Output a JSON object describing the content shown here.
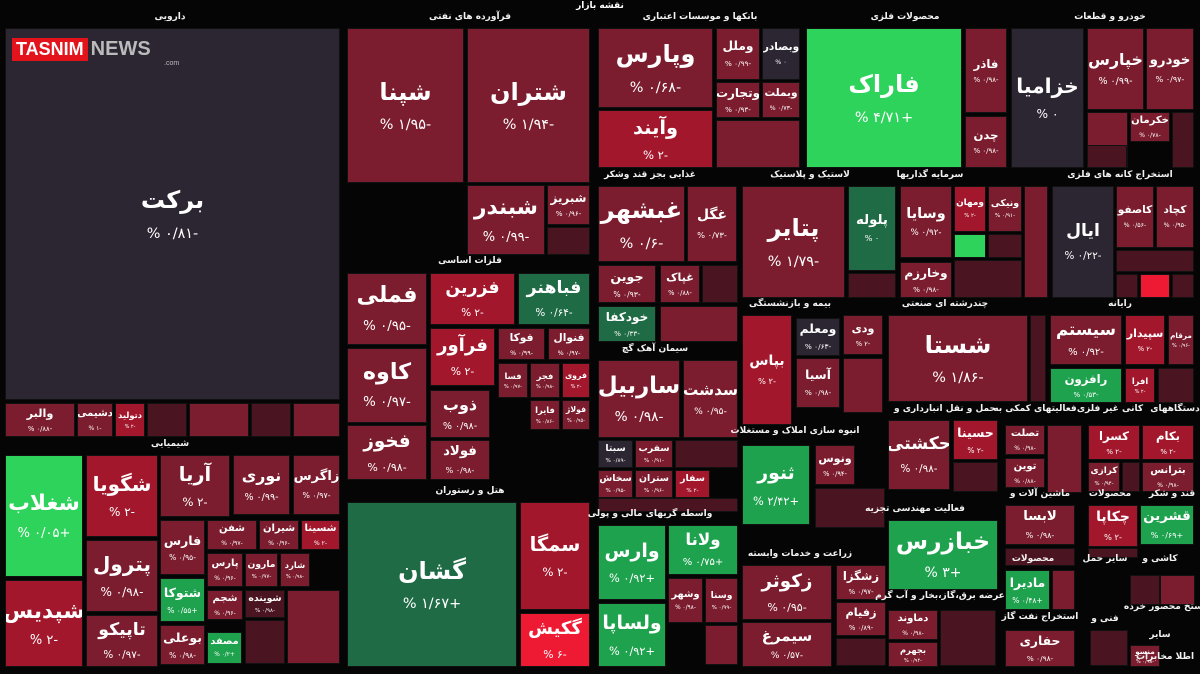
{
  "title": "نقشه بازار",
  "logo": {
    "brand": "TASNIM",
    "suffix": "NEWS",
    "domain": ".com"
  },
  "sectors": [
    {
      "name": "دارویی",
      "tiles": [
        {
          "label": "برکت",
          "change": "-۰/۸۱ %"
        },
        {
          "label": "والبر",
          "change": "-۰/۸۸ %"
        },
        {
          "label": "دشیمی",
          "change": "-۱ %"
        },
        {
          "label": "دتولید",
          "change": "-۲ %"
        }
      ]
    },
    {
      "name": "فرآورده های نفتی",
      "tiles": [
        {
          "label": "شپنا",
          "change": "-۱/۹۵ %"
        },
        {
          "label": "شتران",
          "change": "-۱/۹۴ %"
        },
        {
          "label": "شبندر",
          "change": "-۰/۹۹ %"
        },
        {
          "label": "شبریز",
          "change": "-۰/۹۶ %"
        }
      ]
    },
    {
      "name": "بانکها و موسسات اعتباری",
      "tiles": [
        {
          "label": "وپارس",
          "change": "-۰/۶۸ %"
        },
        {
          "label": "وآیند",
          "change": "-۲ %"
        },
        {
          "label": "وملل",
          "change": "-۰/۹۹ %"
        },
        {
          "label": "وبصادر",
          "change": "۰ %"
        },
        {
          "label": "وتجارت",
          "change": "-۰/۹۳ %"
        },
        {
          "label": "وبملت",
          "change": "-۰/۷۳ %"
        }
      ]
    },
    {
      "name": "محصولات فلزی",
      "tiles": [
        {
          "label": "فاراک",
          "change": "+۴/۷۱ %"
        },
        {
          "label": "فاذر",
          "change": "-۰/۹۸ %"
        },
        {
          "label": "چدن",
          "change": "-۰/۹۸ %"
        }
      ]
    },
    {
      "name": "خودرو و قطعات",
      "tiles": [
        {
          "label": "خزامیا",
          "change": "۰ %"
        },
        {
          "label": "خپارس",
          "change": "-۰/۹۹ %"
        },
        {
          "label": "خودرو",
          "change": "-۰/۹۷ %"
        },
        {
          "label": "خکرمان",
          "change": "-۰/۷۸ %"
        }
      ]
    },
    {
      "name": "غذایی بجز قند وشکر",
      "tiles": [
        {
          "label": "غبشهر",
          "change": "-۰/۶ %"
        },
        {
          "label": "غگل",
          "change": "-۰/۷۳ %"
        },
        {
          "label": "جوین",
          "change": "-۰/۹۳ %"
        },
        {
          "label": "غپاک",
          "change": "-۰/۸۸ %"
        },
        {
          "label": "خودکفا",
          "change": "-۰/۳۳ %"
        }
      ]
    },
    {
      "name": "لاستیک و پلاستیک",
      "tiles": [
        {
          "label": "پتایر",
          "change": "-۱/۷۹ %"
        },
        {
          "label": "پلوله",
          "change": "۰ %"
        }
      ]
    },
    {
      "name": "سرمایه گذاریها",
      "tiles": [
        {
          "label": "وسایا",
          "change": "-۰/۹۲ %"
        },
        {
          "label": "ومهان",
          "change": "-۲ %"
        },
        {
          "label": "ونیکی",
          "change": "-۰/۹۱ %"
        },
        {
          "label": "وخارزم",
          "change": "-۰/۹۸ %"
        }
      ]
    },
    {
      "name": "استخراج کانه های فلزی",
      "tiles": [
        {
          "label": "ایال",
          "change": "-۰/۲۲ %"
        },
        {
          "label": "کاصفو",
          "change": "-۰/۵۶ %"
        },
        {
          "label": "کچاد",
          "change": "-۰/۹۵ %"
        }
      ]
    },
    {
      "name": "فلزات اساسی",
      "tiles": [
        {
          "label": "فملی",
          "change": "-۰/۹۵ %"
        },
        {
          "label": "فزرین",
          "change": "-۲ %"
        },
        {
          "label": "فباهنر",
          "change": "-۰/۶۴ %"
        },
        {
          "label": "کاوه",
          "change": "-۰/۹۷ %"
        },
        {
          "label": "فرآور",
          "change": "-۲ %"
        },
        {
          "label": "فوکا",
          "change": "-۰/۹۹ %"
        },
        {
          "label": "فنوال",
          "change": "-۰/۹۷ %"
        },
        {
          "label": "فخوز",
          "change": "-۰/۹۸ %"
        },
        {
          "label": "ذوب",
          "change": "-۰/۹۸ %"
        },
        {
          "label": "فولاد",
          "change": "-۰/۹۸ %"
        },
        {
          "label": "فسا",
          "change": "-۰/۹۷ %"
        },
        {
          "label": "فجر",
          "change": "-۰/۹۸ %"
        },
        {
          "label": "فروی",
          "change": "-۲ %"
        },
        {
          "label": "فایرا",
          "change": "-۰/۸۶ %"
        },
        {
          "label": "فولاژ",
          "change": "-۰/۹۵ %"
        }
      ]
    },
    {
      "name": "سیمان آهک گچ",
      "tiles": [
        {
          "label": "ساربیل",
          "change": "-۰/۹۸ %"
        },
        {
          "label": "سدشت",
          "change": "-۰/۹۵ %"
        },
        {
          "label": "سبتا",
          "change": "-۰/۸۹ %"
        },
        {
          "label": "سفرب",
          "change": "-۰/۹۱ %"
        },
        {
          "label": "سخاش",
          "change": "-۰/۹۵ %"
        },
        {
          "label": "ستران",
          "change": "-۰/۹۶ %"
        },
        {
          "label": "سفار",
          "change": "-۲ %"
        }
      ]
    },
    {
      "name": "بیمه و بازنشستگی",
      "tiles": [
        {
          "label": "بپاس",
          "change": "-۲ %"
        },
        {
          "label": "ومعلم",
          "change": "-۰/۶۳ %"
        },
        {
          "label": "ودی",
          "change": "-۲ %"
        },
        {
          "label": "آسیا",
          "change": "-۰/۹۸ %"
        }
      ]
    },
    {
      "name": "چندرشته ای صنعتی",
      "tiles": [
        {
          "label": "شستا",
          "change": "-۱/۸۶ %"
        }
      ]
    },
    {
      "name": "رایانه",
      "tiles": [
        {
          "label": "سیستم",
          "change": "-۰/۹۲ %"
        },
        {
          "label": "سپیدار",
          "change": "-۲ %"
        },
        {
          "label": "مرقام",
          "change": "-۰/۹۶ %"
        },
        {
          "label": "رافزون",
          "change": "-۰/۵۳ %"
        },
        {
          "label": "افرا",
          "change": "-۲ %"
        }
      ]
    },
    {
      "name": "انبوه سازی املاک و مستغلات",
      "tiles": [
        {
          "label": "ثنور",
          "change": "+۲/۴۲ %"
        },
        {
          "label": "ونوس",
          "change": "-۰/۹۴ %"
        }
      ]
    },
    {
      "name": "حمل و نقل انبارداری و",
      "tiles": [
        {
          "label": "حکشتی",
          "change": "-۰/۹۸ %"
        },
        {
          "label": "حسینا",
          "change": "-۲ %"
        }
      ]
    },
    {
      "name": "فعالیتهای کمکی به",
      "tiles": [
        {
          "label": "تصلت",
          "change": "-۰/۹۸ %"
        },
        {
          "label": "توین",
          "change": "-۰/۸۸ %"
        }
      ]
    },
    {
      "name": "کانی غیر فلزی",
      "tiles": [
        {
          "label": "کسرا",
          "change": "-۲ %"
        },
        {
          "label": "کرازی",
          "change": "-۰/۹۴ %"
        }
      ]
    },
    {
      "name": "دستگاههای",
      "tiles": [
        {
          "label": "بکام",
          "change": "-۲ %"
        },
        {
          "label": "بترانس",
          "change": "-۰/۹۸ %"
        }
      ]
    },
    {
      "name": "شیمیایی",
      "tiles": [
        {
          "label": "شغلاب",
          "change": "+۰/۰۵ %"
        },
        {
          "label": "شپدیس",
          "change": "-۲ %"
        },
        {
          "label": "شگویا",
          "change": "-۲ %"
        },
        {
          "label": "آریا",
          "change": "-۲ %"
        },
        {
          "label": "نوری",
          "change": "-۰/۹۹ %"
        },
        {
          "label": "زاگرس",
          "change": "-۰/۹۷ %"
        },
        {
          "label": "پترول",
          "change": "-۰/۹۸ %"
        },
        {
          "label": "تاپیکو",
          "change": "-۰/۹۷ %"
        },
        {
          "label": "فارس",
          "change": "-۰/۹۵ %"
        },
        {
          "label": "شفن",
          "change": "-۰/۹۷ %"
        },
        {
          "label": "شیران",
          "change": "-۰/۹۶ %"
        },
        {
          "label": "شسینا",
          "change": "-۲ %"
        },
        {
          "label": "پارس",
          "change": "-۰/۹۶ %"
        },
        {
          "label": "مارون",
          "change": "-۰/۹۷ %"
        },
        {
          "label": "شارد",
          "change": "-۰/۹۸ %"
        },
        {
          "label": "شتوکا",
          "change": "+۰/۵۵ %"
        },
        {
          "label": "شجم",
          "change": "-۰/۹۶ %"
        },
        {
          "label": "شوینده",
          "change": "-۰/۹۸ %"
        },
        {
          "label": "بوعلی",
          "change": "-۰/۹۸ %"
        },
        {
          "label": "مصفد",
          "change": "+۰/۲ %"
        }
      ]
    },
    {
      "name": "هتل و رستوران",
      "tiles": [
        {
          "label": "گشان",
          "change": "+۱/۶۷ %"
        },
        {
          "label": "سمگا",
          "change": "-۲ %"
        },
        {
          "label": "گکیش",
          "change": "-۶ %"
        }
      ]
    },
    {
      "name": "واسطه گریهای مالی و پولی",
      "tiles": [
        {
          "label": "وارس",
          "change": "+۰/۹۲ %"
        },
        {
          "label": "ولانا",
          "change": "+۰/۷۵ %"
        },
        {
          "label": "وشهر",
          "change": "-۰/۹۸ %"
        },
        {
          "label": "وسنا",
          "change": "-۰/۹۹ %"
        },
        {
          "label": "ولساپا",
          "change": "+۰/۹۲ %"
        }
      ]
    },
    {
      "name": "زراعت و خدمات وابسته",
      "tiles": [
        {
          "label": "زکوثر",
          "change": "-۰/۹۵ %"
        },
        {
          "label": "سیمرغ",
          "change": "-۰/۵۷ %"
        },
        {
          "label": "زشگزا",
          "change": "-۰/۹۷ %"
        },
        {
          "label": "زفیام",
          "change": "-۰/۸۹ %"
        }
      ]
    },
    {
      "name": "فعالیت مهندسی تجزیه",
      "tiles": [
        {
          "label": "خبازرس",
          "change": "+۳ %"
        }
      ]
    },
    {
      "name": "عرضه برق،گاز،بخار و آب گرم",
      "tiles": [
        {
          "label": "دماوند",
          "change": "-۰/۹۸ %"
        },
        {
          "label": "بجهرم",
          "change": "-۰/۹۴ %"
        }
      ]
    },
    {
      "name": "ماشین آلات و",
      "tiles": [
        {
          "label": "لابسا",
          "change": "-۰/۹۸ %"
        }
      ]
    },
    {
      "name": "محصولات",
      "tiles": [
        {
          "label": "چکاپا",
          "change": "-۲ %"
        }
      ]
    },
    {
      "name": "قند و شکر",
      "tiles": [
        {
          "label": "قشرین",
          "change": "+۰/۶۹ %"
        }
      ]
    },
    {
      "name": "سایر حمل",
      "tiles": []
    },
    {
      "name": "کاشی و",
      "tiles": []
    },
    {
      "name": "محصولات",
      "tiles": [
        {
          "label": "مادیرا",
          "change": "+۰/۴۸ %"
        }
      ]
    },
    {
      "name": "استخراج نفت گاز",
      "tiles": [
        {
          "label": "حفاری",
          "change": "-۰/۹۸ %"
        }
      ]
    },
    {
      "name": "فنی و",
      "tiles": []
    },
    {
      "name": "استخ محصور خرده",
      "tiles": []
    },
    {
      "name": "سایر",
      "tiles": [
        {
          "label": "منسو",
          "change": "-۰/۹۸ %"
        }
      ]
    },
    {
      "name": "اطلا مخابرات",
      "tiles": []
    }
  ]
}
